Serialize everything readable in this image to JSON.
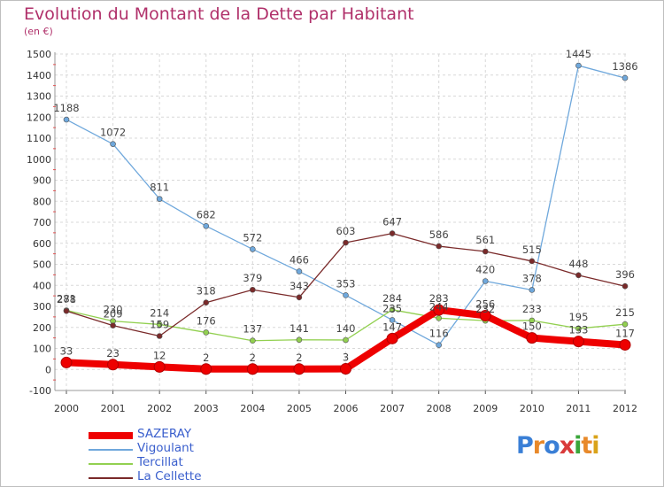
{
  "title": "Evolution du Montant de la Dette par Habitant",
  "subtitle": "(en €)",
  "logo": {
    "text": "Proxiti",
    "colors": [
      "#3a7fd6",
      "#e8892a",
      "#3a7fd6",
      "#d93a3a",
      "#3aa63a",
      "#e8892a",
      "#d9a31a"
    ]
  },
  "chart_data": {
    "type": "line",
    "title": "Evolution du Montant de la Dette par Habitant",
    "ylabel": "(en €)",
    "x": [
      "2000",
      "2001",
      "2002",
      "2003",
      "2004",
      "2005",
      "2006",
      "2007",
      "2008",
      "2009",
      "2010",
      "2011",
      "2012"
    ],
    "ylim": [
      -100,
      1500
    ],
    "yticks": [
      "-100",
      "0",
      "100",
      "200",
      "300",
      "400",
      "500",
      "600",
      "700",
      "800",
      "900",
      "1000",
      "1100",
      "1200",
      "1300",
      "1400",
      "1500"
    ],
    "grid": true,
    "legend_position": "bottom-left",
    "series": [
      {
        "name": "SAZERAY",
        "color": "#ee0000",
        "values": [
          33,
          23,
          12,
          2,
          2,
          2,
          3,
          147,
          283,
          256,
          150,
          133,
          117
        ],
        "labels": [
          "33",
          "23",
          "12",
          "2",
          "2",
          "2",
          "3",
          "147",
          "283",
          "256",
          "150",
          "133",
          "117"
        ]
      },
      {
        "name": "Vigoulant",
        "color": "#6fa8dc",
        "values": [
          1188,
          1072,
          811,
          682,
          572,
          466,
          353,
          235,
          116,
          420,
          378,
          1445,
          1386
        ],
        "labels": [
          "1188",
          "1072",
          "811",
          "682",
          "572",
          "466",
          "353",
          "235",
          "116",
          "420",
          "378",
          "1445",
          "1386"
        ]
      },
      {
        "name": "Tercillat",
        "color": "#92d050",
        "values": [
          281,
          230,
          214,
          176,
          137,
          141,
          140,
          284,
          244,
          232,
          233,
          195,
          215
        ],
        "labels": [
          "281",
          "230",
          "214",
          "176",
          "137",
          "141",
          "140",
          "284",
          "244",
          "232",
          "233",
          "195",
          "215"
        ]
      },
      {
        "name": "La Cellette",
        "color": "#7a2a2a",
        "values": [
          278,
          209,
          159,
          318,
          379,
          343,
          603,
          647,
          586,
          561,
          515,
          448,
          396
        ],
        "labels": [
          "278",
          "209",
          "159",
          "318",
          "379",
          "343",
          "603",
          "647",
          "586",
          "561",
          "515",
          "448",
          "396"
        ]
      }
    ]
  }
}
